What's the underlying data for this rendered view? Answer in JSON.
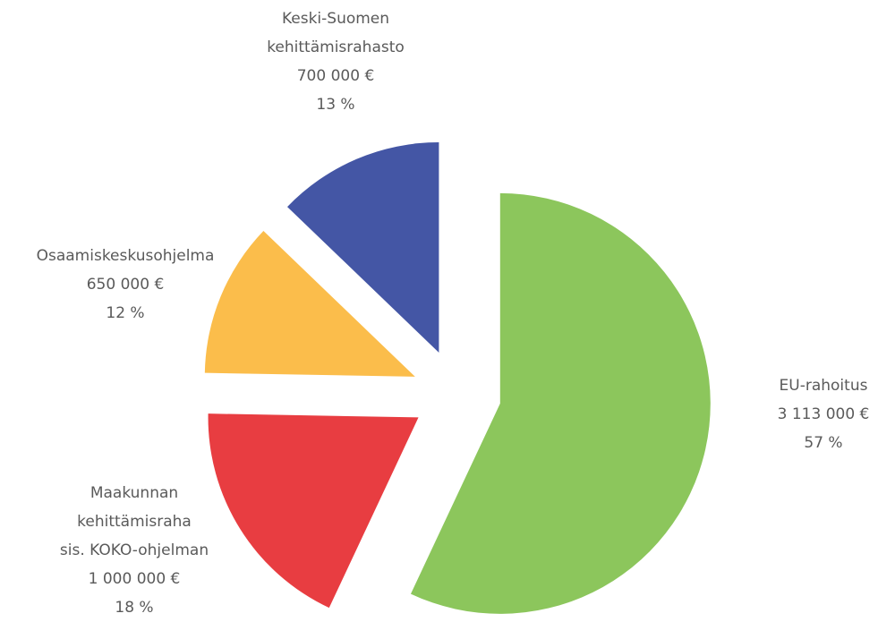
{
  "chart_data": {
    "type": "pie",
    "categories": [
      "EU-rahoitus",
      "Maakunnan\nkehittämisraha\nsis. KOKO-ohjelman",
      "Osaamiskeskusohjelma",
      "Keski-Suomen\nkehittämisrahasto"
    ],
    "values": [
      3113000,
      1000000,
      650000,
      700000
    ],
    "value_labels": [
      "3 113 000 €",
      "1 000 000 €",
      "650 000 €",
      "700 000 €"
    ],
    "shares": [
      57,
      18,
      12,
      13
    ],
    "share_labels": [
      "57 %",
      "18 %",
      "12 %",
      "13 %"
    ],
    "colors": [
      "#8cc65c",
      "#e83d41",
      "#fbbd4b",
      "#4456a5"
    ],
    "exploded": true
  }
}
